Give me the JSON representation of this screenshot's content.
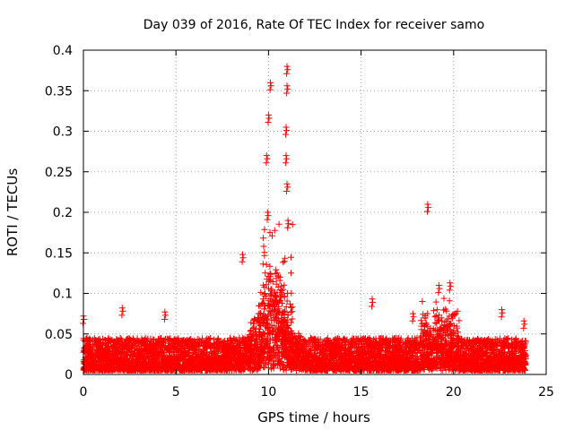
{
  "chart_data": {
    "type": "scatter",
    "title": "Day 039 of 2016, Rate Of TEC Index for receiver samo",
    "xlabel": "GPS time / hours",
    "ylabel": "ROTI / TECUs",
    "xlim": [
      0,
      25
    ],
    "ylim": [
      0,
      0.4
    ],
    "grid": true,
    "marker": "+",
    "marker_color": "#ff0000",
    "x_ticks": [
      0,
      5,
      10,
      15,
      20,
      25
    ],
    "x_tick_labels": [
      "0",
      "5",
      "10",
      "15",
      "20",
      "25"
    ],
    "y_ticks": [
      0,
      0.05,
      0.1,
      0.15,
      0.2,
      0.25,
      0.3,
      0.35,
      0.4
    ],
    "y_tick_labels": [
      "0",
      "0.05",
      "0.1",
      "0.15",
      "0.2",
      "0.25",
      "0.3",
      "0.35",
      "0.4"
    ],
    "x_range_observed": [
      0,
      23.9
    ],
    "background_level": [
      0.005,
      0.045
    ],
    "peak_events": [
      {
        "x": 10.1,
        "y": 0.36
      },
      {
        "x": 10.0,
        "y": 0.32
      },
      {
        "x": 9.9,
        "y": 0.27
      },
      {
        "x": 9.95,
        "y": 0.2
      },
      {
        "x": 11.0,
        "y": 0.38
      },
      {
        "x": 11.0,
        "y": 0.356
      },
      {
        "x": 10.95,
        "y": 0.305
      },
      {
        "x": 10.95,
        "y": 0.27
      },
      {
        "x": 11.0,
        "y": 0.235
      },
      {
        "x": 11.05,
        "y": 0.19
      },
      {
        "x": 18.6,
        "y": 0.21
      },
      {
        "x": 8.6,
        "y": 0.148
      },
      {
        "x": 0.0,
        "y": 0.072
      },
      {
        "x": 2.1,
        "y": 0.082
      },
      {
        "x": 4.4,
        "y": 0.077
      },
      {
        "x": 15.6,
        "y": 0.093
      },
      {
        "x": 17.8,
        "y": 0.075
      },
      {
        "x": 19.2,
        "y": 0.11
      },
      {
        "x": 19.8,
        "y": 0.113
      },
      {
        "x": 22.6,
        "y": 0.08
      },
      {
        "x": 23.8,
        "y": 0.066
      }
    ]
  }
}
